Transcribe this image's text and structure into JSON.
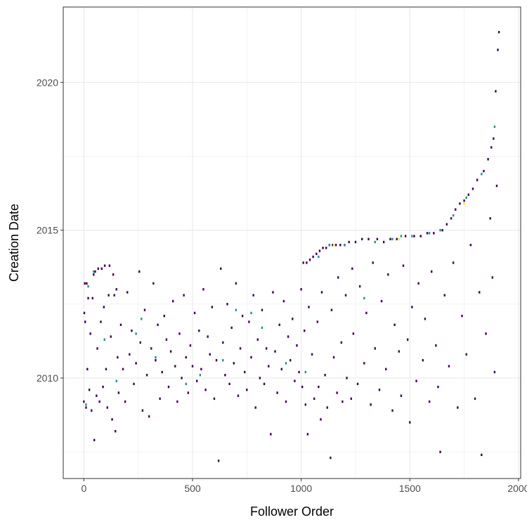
{
  "chart_data": {
    "type": "heatmap",
    "title": "",
    "xlabel": "Follower Order",
    "ylabel": "Creation Date",
    "xlim": [
      -95,
      2010
    ],
    "ylim": [
      2006.6,
      2022.55
    ],
    "x_ticks": [
      0,
      500,
      1000,
      1500,
      2000
    ],
    "x_tick_labels": [
      "0",
      "500",
      "1000",
      "1500",
      "2000"
    ],
    "y_ticks": [
      2010,
      2015,
      2020
    ],
    "y_tick_labels": [
      "2010",
      "2015",
      "2020"
    ],
    "grid": true,
    "legend": "none",
    "colors": {
      "low": "#440154",
      "mid": "#21918c",
      "high": "#fde725",
      "grid": "#ebebeb",
      "panel_border": "#333333"
    },
    "series": [
      {
        "name": "",
        "cells": [
          [
            0,
            2009.2
          ],
          [
            2,
            2012.2
          ],
          [
            4,
            2013.2
          ],
          [
            6,
            2011.9
          ],
          [
            10,
            2009.0
          ],
          [
            13,
            2013.2
          ],
          [
            16,
            2010.3
          ],
          [
            20,
            2012.7
          ],
          [
            25,
            2009.6
          ],
          [
            30,
            2011.5
          ],
          [
            35,
            2008.9
          ],
          [
            40,
            2012.7
          ],
          [
            45,
            2013.5
          ],
          [
            48,
            2007.9
          ],
          [
            52,
            2013.6
          ],
          [
            58,
            2009.4
          ],
          [
            62,
            2011.0
          ],
          [
            66,
            2013.7
          ],
          [
            72,
            2009.2
          ],
          [
            78,
            2011.9
          ],
          [
            82,
            2013.7
          ],
          [
            88,
            2009.7
          ],
          [
            92,
            2012.4
          ],
          [
            96,
            2013.8
          ],
          [
            102,
            2010.3
          ],
          [
            108,
            2009.0
          ],
          [
            114,
            2012.8
          ],
          [
            118,
            2013.8
          ],
          [
            124,
            2011.4
          ],
          [
            130,
            2008.6
          ],
          [
            135,
            2013.5
          ],
          [
            140,
            2012.8
          ],
          [
            145,
            2008.2
          ],
          [
            150,
            2013.0
          ],
          [
            155,
            2010.7
          ],
          [
            160,
            2009.5
          ],
          [
            170,
            2011.8
          ],
          [
            180,
            2010.3
          ],
          [
            190,
            2009.2
          ],
          [
            200,
            2012.9
          ],
          [
            210,
            2010.8
          ],
          [
            220,
            2011.6
          ],
          [
            230,
            2009.8
          ],
          [
            240,
            2010.5
          ],
          [
            255,
            2013.6
          ],
          [
            260,
            2011.2
          ],
          [
            270,
            2008.9
          ],
          [
            280,
            2012.3
          ],
          [
            290,
            2010.1
          ],
          [
            300,
            2008.7
          ],
          [
            310,
            2011.0
          ],
          [
            320,
            2013.2
          ],
          [
            330,
            2010.6
          ],
          [
            340,
            2011.8
          ],
          [
            350,
            2009.3
          ],
          [
            360,
            2010.2
          ],
          [
            370,
            2012.1
          ],
          [
            380,
            2011.3
          ],
          [
            390,
            2009.7
          ],
          [
            400,
            2010.9
          ],
          [
            410,
            2012.6
          ],
          [
            420,
            2010.4
          ],
          [
            430,
            2009.2
          ],
          [
            440,
            2011.5
          ],
          [
            450,
            2010.0
          ],
          [
            460,
            2012.8
          ],
          [
            470,
            2010.7
          ],
          [
            480,
            2009.5
          ],
          [
            490,
            2011.1
          ],
          [
            500,
            2010.4
          ],
          [
            510,
            2012.2
          ],
          [
            520,
            2009.9
          ],
          [
            530,
            2011.6
          ],
          [
            540,
            2010.3
          ],
          [
            550,
            2013.0
          ],
          [
            560,
            2009.6
          ],
          [
            570,
            2011.4
          ],
          [
            580,
            2010.8
          ],
          [
            590,
            2012.4
          ],
          [
            600,
            2009.3
          ],
          [
            610,
            2010.6
          ],
          [
            620,
            2007.2
          ],
          [
            630,
            2013.7
          ],
          [
            640,
            2011.2
          ],
          [
            650,
            2010.1
          ],
          [
            660,
            2012.5
          ],
          [
            670,
            2009.8
          ],
          [
            680,
            2011.7
          ],
          [
            690,
            2010.5
          ],
          [
            700,
            2013.2
          ],
          [
            710,
            2009.4
          ],
          [
            720,
            2011.0
          ],
          [
            730,
            2012.1
          ],
          [
            740,
            2010.2
          ],
          [
            750,
            2009.6
          ],
          [
            760,
            2011.9
          ],
          [
            770,
            2010.7
          ],
          [
            780,
            2012.8
          ],
          [
            790,
            2009.0
          ],
          [
            800,
            2011.3
          ],
          [
            810,
            2010.0
          ],
          [
            820,
            2012.3
          ],
          [
            830,
            2009.8
          ],
          [
            840,
            2011.0
          ],
          [
            850,
            2010.4
          ],
          [
            860,
            2008.1
          ],
          [
            870,
            2012.9
          ],
          [
            880,
            2010.9
          ],
          [
            890,
            2009.5
          ],
          [
            900,
            2011.8
          ],
          [
            910,
            2010.3
          ],
          [
            920,
            2012.6
          ],
          [
            930,
            2009.2
          ],
          [
            940,
            2011.4
          ],
          [
            950,
            2010.6
          ],
          [
            960,
            2012.0
          ],
          [
            970,
            2009.9
          ],
          [
            980,
            2011.1
          ],
          [
            990,
            2010.2
          ],
          [
            1000,
            2013.0
          ],
          [
            1005,
            2009.7
          ],
          [
            1010,
            2013.9
          ],
          [
            1015,
            2011.6
          ],
          [
            1020,
            2009.1
          ],
          [
            1025,
            2013.9
          ],
          [
            1030,
            2008.1
          ],
          [
            1035,
            2012.4
          ],
          [
            1040,
            2014.0
          ],
          [
            1050,
            2010.8
          ],
          [
            1055,
            2014.1
          ],
          [
            1060,
            2009.3
          ],
          [
            1070,
            2014.2
          ],
          [
            1075,
            2011.9
          ],
          [
            1080,
            2009.7
          ],
          [
            1085,
            2014.3
          ],
          [
            1090,
            2008.6
          ],
          [
            1095,
            2012.9
          ],
          [
            1100,
            2014.4
          ],
          [
            1110,
            2010.1
          ],
          [
            1115,
            2014.4
          ],
          [
            1120,
            2009.0
          ],
          [
            1130,
            2014.5
          ],
          [
            1135,
            2007.3
          ],
          [
            1140,
            2012.3
          ],
          [
            1145,
            2014.5
          ],
          [
            1150,
            2010.7
          ],
          [
            1160,
            2014.5
          ],
          [
            1165,
            2009.5
          ],
          [
            1170,
            2013.4
          ],
          [
            1180,
            2014.5
          ],
          [
            1185,
            2011.2
          ],
          [
            1190,
            2009.2
          ],
          [
            1200,
            2014.5
          ],
          [
            1205,
            2012.8
          ],
          [
            1210,
            2010.0
          ],
          [
            1220,
            2014.6
          ],
          [
            1230,
            2009.3
          ],
          [
            1235,
            2013.7
          ],
          [
            1240,
            2011.5
          ],
          [
            1250,
            2014.6
          ],
          [
            1260,
            2009.8
          ],
          [
            1270,
            2013.1
          ],
          [
            1280,
            2014.7
          ],
          [
            1290,
            2010.5
          ],
          [
            1300,
            2012.2
          ],
          [
            1310,
            2014.7
          ],
          [
            1320,
            2009.1
          ],
          [
            1330,
            2013.9
          ],
          [
            1340,
            2011.0
          ],
          [
            1350,
            2014.7
          ],
          [
            1360,
            2009.6
          ],
          [
            1370,
            2012.6
          ],
          [
            1380,
            2014.6
          ],
          [
            1390,
            2010.3
          ],
          [
            1400,
            2013.5
          ],
          [
            1410,
            2014.7
          ],
          [
            1420,
            2008.9
          ],
          [
            1430,
            2011.8
          ],
          [
            1440,
            2014.7
          ],
          [
            1450,
            2010.9
          ],
          [
            1460,
            2009.4
          ],
          [
            1470,
            2013.8
          ],
          [
            1480,
            2014.8
          ],
          [
            1490,
            2011.3
          ],
          [
            1500,
            2008.5
          ],
          [
            1510,
            2012.4
          ],
          [
            1520,
            2014.8
          ],
          [
            1530,
            2009.9
          ],
          [
            1540,
            2013.2
          ],
          [
            1550,
            2014.8
          ],
          [
            1560,
            2010.6
          ],
          [
            1570,
            2012.0
          ],
          [
            1580,
            2014.9
          ],
          [
            1590,
            2009.2
          ],
          [
            1600,
            2013.6
          ],
          [
            1610,
            2014.9
          ],
          [
            1620,
            2011.1
          ],
          [
            1630,
            2009.7
          ],
          [
            1640,
            2007.5
          ],
          [
            1650,
            2015.0
          ],
          [
            1660,
            2012.8
          ],
          [
            1670,
            2015.2
          ],
          [
            1680,
            2010.4
          ],
          [
            1690,
            2015.4
          ],
          [
            1700,
            2013.9
          ],
          [
            1710,
            2015.7
          ],
          [
            1720,
            2009.0
          ],
          [
            1730,
            2015.9
          ],
          [
            1740,
            2012.1
          ],
          [
            1750,
            2016.0
          ],
          [
            1760,
            2010.8
          ],
          [
            1770,
            2016.2
          ],
          [
            1780,
            2014.5
          ],
          [
            1790,
            2016.4
          ],
          [
            1800,
            2009.3
          ],
          [
            1810,
            2016.7
          ],
          [
            1820,
            2012.9
          ],
          [
            1830,
            2007.4
          ],
          [
            1840,
            2017.0
          ],
          [
            1850,
            2011.5
          ],
          [
            1860,
            2017.4
          ],
          [
            1870,
            2015.4
          ],
          [
            1875,
            2017.8
          ],
          [
            1880,
            2013.4
          ],
          [
            1885,
            2018.1
          ],
          [
            1890,
            2010.2
          ],
          [
            1895,
            2019.7
          ],
          [
            1900,
            2016.5
          ],
          [
            1905,
            2021.1
          ],
          [
            1910,
            2021.7
          ]
        ],
        "teal_cells": [
          [
            10,
            2009.1
          ],
          [
            20,
            2013.1
          ],
          [
            45,
            2013.6
          ],
          [
            95,
            2011.3
          ],
          [
            150,
            2009.9
          ],
          [
            240,
            2011.5
          ],
          [
            265,
            2012.0
          ],
          [
            330,
            2010.7
          ],
          [
            470,
            2009.8
          ],
          [
            535,
            2010.1
          ],
          [
            640,
            2010.6
          ],
          [
            700,
            2012.3
          ],
          [
            770,
            2012.2
          ],
          [
            820,
            2011.7
          ],
          [
            930,
            2010.5
          ],
          [
            1020,
            2010.2
          ],
          [
            1080,
            2014.1
          ],
          [
            1130,
            2014.5
          ],
          [
            1200,
            2014.5
          ],
          [
            1290,
            2012.7
          ],
          [
            1340,
            2014.6
          ],
          [
            1420,
            2014.7
          ],
          [
            1460,
            2014.8
          ],
          [
            1510,
            2014.8
          ],
          [
            1590,
            2014.9
          ],
          [
            1640,
            2015.0
          ],
          [
            1700,
            2015.5
          ],
          [
            1760,
            2016.1
          ],
          [
            1830,
            2016.9
          ],
          [
            1890,
            2018.5
          ]
        ],
        "yellow_cells": [
          [
            1150,
            2014.5
          ],
          [
            1450,
            2014.7
          ],
          [
            1750,
            2015.9
          ]
        ]
      }
    ]
  }
}
